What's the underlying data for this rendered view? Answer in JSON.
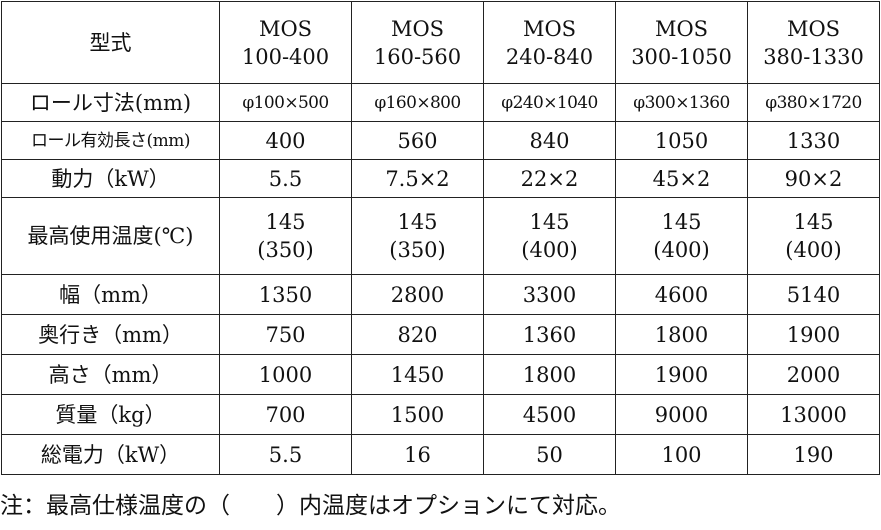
{
  "table": {
    "header": {
      "label": "型式",
      "models": [
        {
          "line1": "MOS",
          "line2": "100-400"
        },
        {
          "line1": "MOS",
          "line2": "160-560"
        },
        {
          "line1": "MOS",
          "line2": "240-840"
        },
        {
          "line1": "MOS",
          "line2": "300-1050"
        },
        {
          "line1": "MOS",
          "line2": "380-1330"
        }
      ]
    },
    "rows": [
      {
        "label": "ロール寸法(mm)",
        "values": [
          "φ100×500",
          "φ160×800",
          "φ240×1040",
          "φ300×1360",
          "φ380×1720"
        ]
      },
      {
        "label": "ロール有効長さ(mm)",
        "values": [
          "400",
          "560",
          "840",
          "1050",
          "1330"
        ]
      },
      {
        "label": "動力（kW）",
        "values": [
          "5.5",
          "7.5×2",
          "22×2",
          "45×2",
          "90×2"
        ]
      },
      {
        "label": "最高使用温度(℃)",
        "values": [
          {
            "line1": "145",
            "line2": "(350)"
          },
          {
            "line1": "145",
            "line2": "(350)"
          },
          {
            "line1": "145",
            "line2": "(400)"
          },
          {
            "line1": "145",
            "line2": "(400)"
          },
          {
            "line1": "145",
            "line2": "(400)"
          }
        ]
      },
      {
        "label": "幅（mm）",
        "values": [
          "1350",
          "2800",
          "3300",
          "4600",
          "5140"
        ]
      },
      {
        "label": "奥行き（mm）",
        "values": [
          "750",
          "820",
          "1360",
          "1800",
          "1900"
        ]
      },
      {
        "label": "高さ（mm）",
        "values": [
          "1000",
          "1450",
          "1800",
          "1900",
          "2000"
        ]
      },
      {
        "label": "質量（kg）",
        "values": [
          "700",
          "1500",
          "4500",
          "9000",
          "13000"
        ]
      },
      {
        "label": "総電力（kW）",
        "values": [
          "5.5",
          "16",
          "50",
          "100",
          "190"
        ]
      }
    ]
  },
  "note": "注：最高仕様温度の（　　）内温度はオプションにて対応。"
}
